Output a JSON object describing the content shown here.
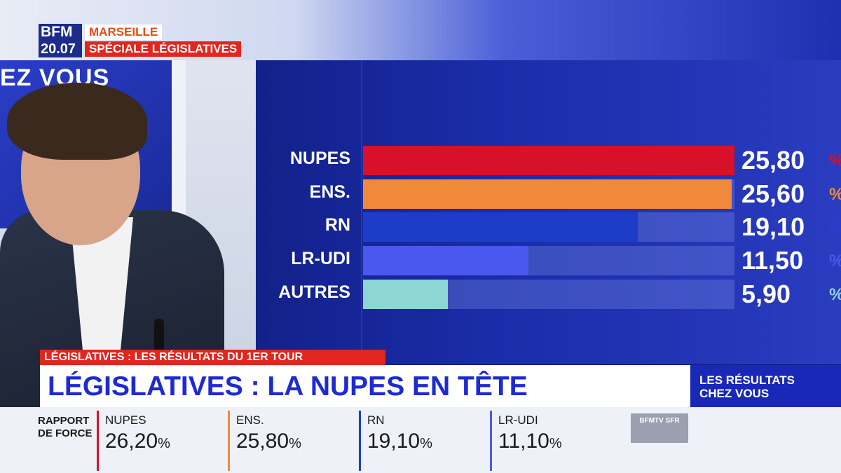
{
  "channel": {
    "logo": "BFM",
    "time": "20.07",
    "city": "MARSEILLE",
    "special": "SPÉCIALE LÉGISLATIVES",
    "wall_text": "EZ VOUS"
  },
  "results_panel": {
    "rows": [
      {
        "label": "NUPES",
        "value": "25,80",
        "pct_sign": "%",
        "percent": 25.8,
        "color": "#d8102a",
        "pct_color": "#d8102a"
      },
      {
        "label": "ENS.",
        "value": "25,60",
        "pct_sign": "%",
        "percent": 25.6,
        "color": "#f08a3a",
        "pct_color": "#f08a3a"
      },
      {
        "label": "RN",
        "value": "19,10",
        "pct_sign": "%",
        "percent": 19.1,
        "color": "#1d3cc8",
        "pct_color": "#2a3dd0"
      },
      {
        "label": "LR-UDI",
        "value": "11,50",
        "pct_sign": "%",
        "percent": 11.5,
        "color": "#4a58f0",
        "pct_color": "#4a58f0"
      },
      {
        "label": "AUTRES",
        "value": "5,90",
        "pct_sign": "%",
        "percent": 5.9,
        "color": "#8ed6d6",
        "pct_color": "#8ed6d6"
      }
    ]
  },
  "lower_third": {
    "kicker": "LÉGISLATIVES : LES RÉSULTATS DU 1ER TOUR",
    "title": "LÉGISLATIVES : LA NUPES EN TÊTE",
    "side_line1": "LES RÉSULTATS",
    "side_line2": "CHEZ VOUS"
  },
  "ticker": {
    "title_line1": "RAPPORT",
    "title_line2": "DE FORCE",
    "items": [
      {
        "party": "NUPES",
        "value": "26,20",
        "sign": "%",
        "sep_color": "#d8102a"
      },
      {
        "party": "ENS.",
        "value": "25,80",
        "sign": "%",
        "sep_color": "#f08a3a"
      },
      {
        "party": "RN",
        "value": "19,10",
        "sign": "%",
        "sep_color": "#1d3cc8"
      },
      {
        "party": "LR-UDI",
        "value": "11,10",
        "sign": "%",
        "sep_color": "#4a58f0"
      }
    ],
    "partner_logo": "BFMTV SFR"
  }
}
